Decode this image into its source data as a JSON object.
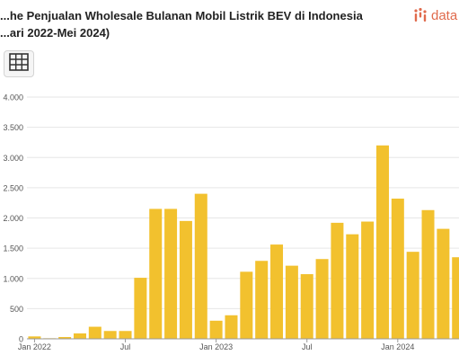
{
  "header": {
    "title_line1": "...he Penjualan Wholesale Bulanan Mobil Listrik BEV di Indonesia",
    "title_line2": "...ari 2022-Mei 2024)"
  },
  "brand": {
    "name": "data",
    "color": "#e06a4c"
  },
  "toolbar": {
    "table_button_icon": "table-grid-icon"
  },
  "chart_data": {
    "type": "bar",
    "color": "#f2c12e",
    "categories": [
      "2022-01",
      "2022-02",
      "2022-03",
      "2022-04",
      "2022-05",
      "2022-06",
      "2022-07",
      "2022-08",
      "2022-09",
      "2022-10",
      "2022-11",
      "2022-12",
      "2023-01",
      "2023-02",
      "2023-03",
      "2023-04",
      "2023-05",
      "2023-06",
      "2023-07",
      "2023-08",
      "2023-09",
      "2023-10",
      "2023-11",
      "2023-12",
      "2024-01",
      "2024-02",
      "2024-03",
      "2024-04",
      "2024-05"
    ],
    "values": [
      40,
      10,
      30,
      90,
      200,
      130,
      130,
      1010,
      2150,
      2150,
      1950,
      2400,
      300,
      390,
      1110,
      1290,
      1560,
      1210,
      1070,
      1320,
      1920,
      1730,
      1940,
      3200,
      2320,
      1440,
      2130,
      1820,
      1350
    ],
    "ylim": [
      0,
      4000
    ],
    "yticks": [
      0,
      500,
      1000,
      1500,
      2000,
      2500,
      3000,
      3500,
      4000
    ],
    "ytick_labels": [
      "0",
      "500",
      "1.000",
      "1.500",
      "2.000",
      "2.500",
      "3.000",
      "3.500",
      "4.000"
    ],
    "xtick_labels": [
      {
        "category": "2022-01",
        "label": "Jan 2022"
      },
      {
        "category": "2022-07",
        "label": "Jul"
      },
      {
        "category": "2023-01",
        "label": "Jan 2023"
      },
      {
        "category": "2023-07",
        "label": "Jul"
      },
      {
        "category": "2024-01",
        "label": "Jan 2024"
      }
    ],
    "grid": true,
    "xlabel": "",
    "ylabel": ""
  }
}
